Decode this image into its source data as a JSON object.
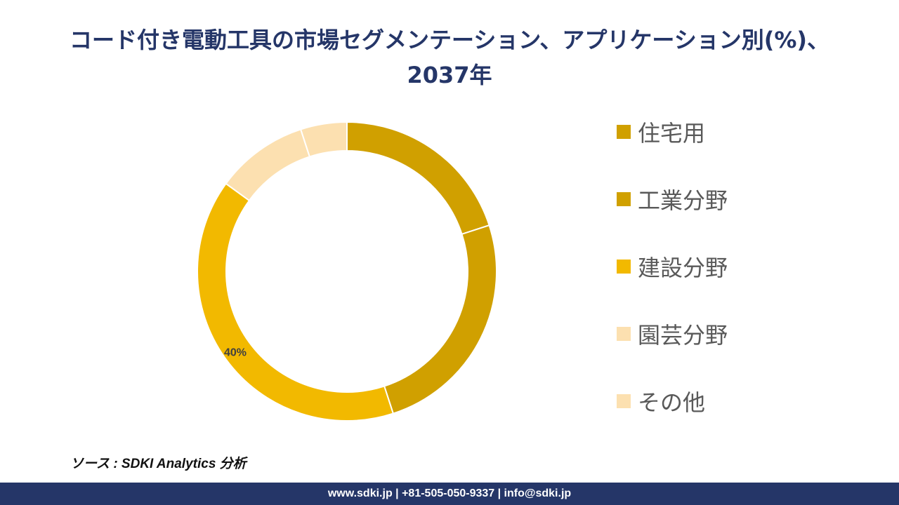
{
  "title": {
    "line1": "コード付き電動工具の市場セグメンテーション、アプリケーション別(%)、",
    "line2": "2037年"
  },
  "chart_data": {
    "type": "pie",
    "categories": [
      "住宅用",
      "工業分野",
      "建設分野",
      "園芸分野",
      "その他"
    ],
    "values": [
      20,
      25,
      40,
      10,
      5
    ],
    "colors": [
      "#D0A000",
      "#D0A000",
      "#F2B900",
      "#FCE0B0",
      "#FCE0B0"
    ],
    "data_labels": [
      "",
      "",
      "40%",
      "",
      ""
    ],
    "donut": true,
    "legend_position": "right"
  },
  "source": "ソース : SDKI Analytics 分析",
  "footer": "www.sdki.jp | +81-505-050-9337 | info@sdki.jp"
}
